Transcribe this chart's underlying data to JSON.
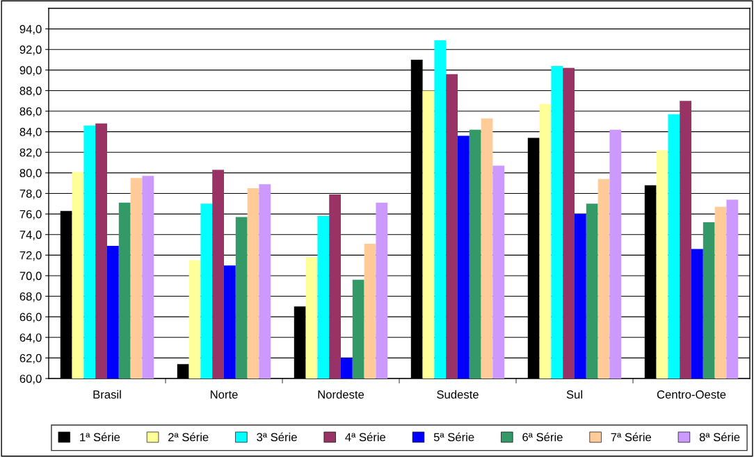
{
  "chart_data": {
    "type": "bar",
    "categories": [
      "Brasil",
      "Norte",
      "Nordeste",
      "Sudeste",
      "Sul",
      "Centro-Oeste"
    ],
    "series": [
      {
        "name": "1ª Série",
        "color": "#000000",
        "values": [
          76.3,
          61.4,
          67.0,
          91.0,
          83.4,
          78.8
        ]
      },
      {
        "name": "2ª Série",
        "color": "#ffff99",
        "values": [
          80.1,
          71.5,
          71.8,
          88.0,
          86.7,
          82.2
        ]
      },
      {
        "name": "3ª Série",
        "color": "#00ffff",
        "values": [
          84.6,
          77.0,
          75.8,
          92.9,
          90.4,
          85.7
        ]
      },
      {
        "name": "4ª Série",
        "color": "#993366",
        "values": [
          84.8,
          80.3,
          77.9,
          89.6,
          90.2,
          87.0
        ]
      },
      {
        "name": "5ª Série",
        "color": "#0000ff",
        "values": [
          72.9,
          71.0,
          62.0,
          83.6,
          76.0,
          72.6
        ]
      },
      {
        "name": "6ª Série",
        "color": "#339966",
        "values": [
          77.1,
          75.7,
          69.6,
          84.2,
          77.0,
          75.2
        ]
      },
      {
        "name": "7ª Série",
        "color": "#ffcc99",
        "values": [
          79.5,
          78.5,
          73.1,
          85.3,
          79.4,
          76.7
        ]
      },
      {
        "name": "8ª Série",
        "color": "#cc99ff",
        "values": [
          79.7,
          78.9,
          77.1,
          80.7,
          84.2,
          77.4
        ]
      }
    ],
    "ylim": [
      60,
      96
    ],
    "yticks": [
      {
        "value": 60,
        "label": "60,0"
      },
      {
        "value": 62,
        "label": "62,0"
      },
      {
        "value": 64,
        "label": "64,0"
      },
      {
        "value": 66,
        "label": "66,0"
      },
      {
        "value": 68,
        "label": "68,0"
      },
      {
        "value": 70,
        "label": "70,0"
      },
      {
        "value": 72,
        "label": "72,0"
      },
      {
        "value": 74,
        "label": "74,0"
      },
      {
        "value": 76,
        "label": "76,0"
      },
      {
        "value": 78,
        "label": "78,0"
      },
      {
        "value": 80,
        "label": "80,0"
      },
      {
        "value": 82,
        "label": "82,0"
      },
      {
        "value": 84,
        "label": "84,0"
      },
      {
        "value": 86,
        "label": "86,0"
      },
      {
        "value": 88,
        "label": "88,0"
      },
      {
        "value": 90,
        "label": "90,0"
      },
      {
        "value": 92,
        "label": "92,0"
      },
      {
        "value": 94,
        "label": "94,0"
      }
    ],
    "grid": "y",
    "legend": "bottom"
  }
}
